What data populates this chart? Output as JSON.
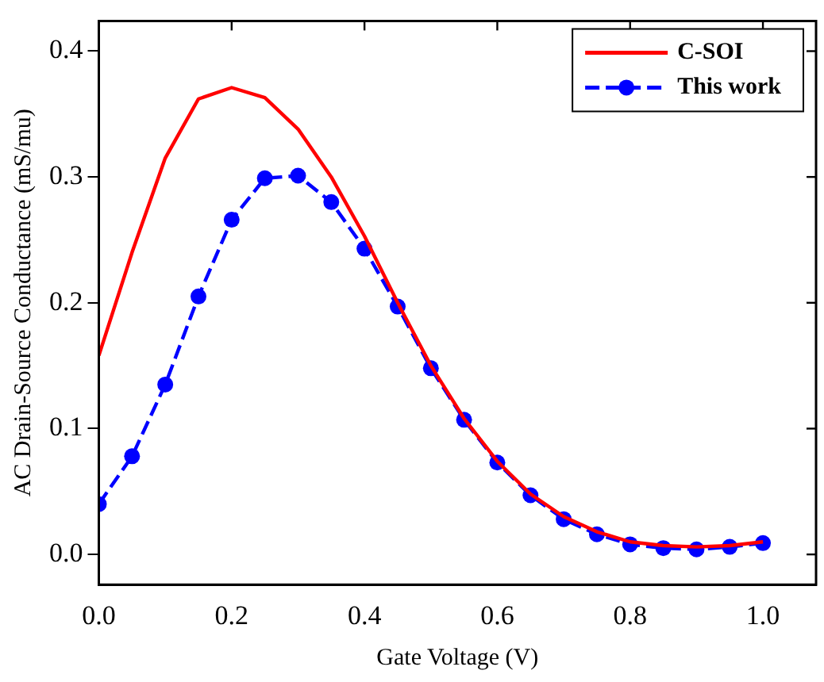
{
  "chart_data": {
    "type": "line",
    "xlabel": "Gate Voltage (V)",
    "ylabel": "AC Drain-Source Conductance (mS/mu)",
    "x": [
      0,
      0.05,
      0.1,
      0.15,
      0.2,
      0.25,
      0.3,
      0.35,
      0.4,
      0.45,
      0.5,
      0.55,
      0.6,
      0.65,
      0.7,
      0.75,
      0.8,
      0.85,
      0.9,
      0.95,
      1.0
    ],
    "series": [
      {
        "name": "C-SOI",
        "color": "#ff0000",
        "marker": "none",
        "line_style": "solid",
        "values": [
          0.158,
          0.24,
          0.315,
          0.362,
          0.371,
          0.363,
          0.338,
          0.3,
          0.253,
          0.2,
          0.15,
          0.108,
          0.074,
          0.048,
          0.03,
          0.018,
          0.01,
          0.007,
          0.006,
          0.007,
          0.01
        ]
      },
      {
        "name": "This work",
        "color": "#0000ff",
        "marker": "circle",
        "line_style": "dashed",
        "values": [
          0.04,
          0.078,
          0.135,
          0.205,
          0.266,
          0.299,
          0.301,
          0.28,
          0.243,
          0.197,
          0.148,
          0.107,
          0.073,
          0.047,
          0.028,
          0.016,
          0.008,
          0.005,
          0.004,
          0.006,
          0.009
        ]
      }
    ],
    "xlim": [
      0,
      1.08
    ],
    "ylim": [
      -0.024,
      0.424
    ],
    "xticks": [
      {
        "value": 0,
        "label": "0.0"
      },
      {
        "value": 0.2,
        "label": "0.2"
      },
      {
        "value": 0.4,
        "label": "0.4"
      },
      {
        "value": 0.6,
        "label": "0.6"
      },
      {
        "value": 0.8,
        "label": "0.8"
      },
      {
        "value": 1.0,
        "label": "1.0"
      }
    ],
    "yticks": [
      {
        "value": 0,
        "label": "0.0"
      },
      {
        "value": 0.1,
        "label": "0.1"
      },
      {
        "value": 0.2,
        "label": "0.2"
      },
      {
        "value": 0.3,
        "label": "0.3"
      },
      {
        "value": 0.4,
        "label": "0.4"
      }
    ],
    "grid": false,
    "legend": "top right"
  }
}
